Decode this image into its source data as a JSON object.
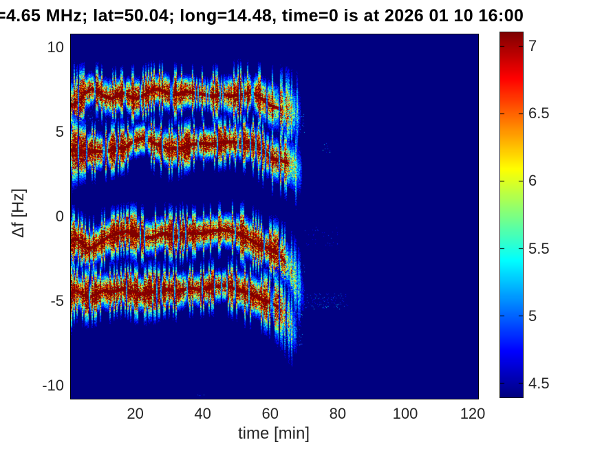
{
  "chart_data": {
    "type": "heatmap",
    "title": "=4.65 MHz;  lat=50.04; long=14.48, time=0 is at 2026 01 10 16:00",
    "xlabel": "time [min]",
    "ylabel": "Δf [Hz]",
    "xlim": [
      0.92,
      121.62
    ],
    "ylim": [
      -10.77,
      10.77
    ],
    "xticks": [
      20,
      40,
      60,
      80,
      100,
      120
    ],
    "yticks": [
      10,
      5,
      0,
      -5,
      -10
    ],
    "grid": false,
    "colormap": "jet",
    "color_axis": [
      4.4,
      7.1
    ],
    "colorbar_ticks": [
      7,
      6.5,
      6,
      5.5,
      5,
      4.5
    ],
    "background_value_color": "#000080",
    "seed": 13,
    "point_format": [
      "t_min",
      "delta_f_hz",
      "amplitude",
      "sigma_hz"
    ],
    "series": [
      {
        "name": "doppler-trace-plus7",
        "points": [
          [
            0.9,
            6.55,
            0.8,
            0.75
          ],
          [
            3,
            6.8,
            0.9,
            0.6
          ],
          [
            5,
            7.3,
            0.95,
            0.5
          ],
          [
            7,
            7.55,
            1,
            0.45
          ],
          [
            9,
            7.45,
            1,
            0.45
          ],
          [
            11,
            7.1,
            1,
            0.5
          ],
          [
            13,
            7.0,
            1,
            0.5
          ],
          [
            14.5,
            7.2,
            1,
            0.45
          ],
          [
            16.5,
            7.3,
            1,
            0.45
          ],
          [
            18.5,
            7.1,
            1,
            0.5
          ],
          [
            20.5,
            7.0,
            1,
            0.55
          ],
          [
            22.5,
            7.2,
            1,
            0.5
          ],
          [
            25,
            7.5,
            1,
            0.45
          ],
          [
            27,
            7.55,
            1,
            0.45
          ],
          [
            29,
            7.4,
            1,
            0.5
          ],
          [
            31,
            7.2,
            1,
            0.5
          ],
          [
            33,
            7.25,
            1,
            0.5
          ],
          [
            35,
            7.4,
            1,
            0.45
          ],
          [
            38,
            7.3,
            1,
            0.45
          ],
          [
            40,
            7.25,
            1,
            0.45
          ],
          [
            43,
            7.15,
            1,
            0.5
          ],
          [
            46,
            7.25,
            1,
            0.5
          ],
          [
            48,
            7.15,
            1,
            0.55
          ],
          [
            51,
            7.2,
            1,
            0.55
          ],
          [
            54,
            7.35,
            1,
            0.5
          ],
          [
            56,
            7.2,
            0.95,
            0.55
          ],
          [
            58,
            6.9,
            0.9,
            0.6
          ],
          [
            60,
            6.6,
            0.8,
            0.65
          ],
          [
            62,
            6.45,
            0.7,
            0.7
          ],
          [
            64,
            6.35,
            0.55,
            0.75
          ],
          [
            66,
            6.2,
            0.4,
            0.8
          ],
          [
            68,
            6.1,
            0.25,
            0.85
          ],
          [
            69.5,
            6.0,
            0.1,
            0.9
          ]
        ]
      },
      {
        "name": "doppler-trace-plus4",
        "points": [
          [
            0.9,
            3.95,
            0.85,
            0.7
          ],
          [
            3,
            3.9,
            0.95,
            0.55
          ],
          [
            5,
            3.85,
            1,
            0.5
          ],
          [
            7,
            3.9,
            1,
            0.5
          ],
          [
            9,
            3.85,
            1,
            0.5
          ],
          [
            11,
            3.9,
            1,
            0.5
          ],
          [
            13,
            3.95,
            1,
            0.5
          ],
          [
            15,
            4.05,
            1,
            0.45
          ],
          [
            17,
            4.1,
            1,
            0.45
          ],
          [
            19,
            4.4,
            1,
            0.45
          ],
          [
            22,
            4.65,
            1,
            0.45
          ],
          [
            24,
            4.55,
            1,
            0.45
          ],
          [
            26,
            4.3,
            1,
            0.5
          ],
          [
            28,
            4.2,
            1,
            0.5
          ],
          [
            30,
            4.0,
            1,
            0.5
          ],
          [
            33,
            4.05,
            1,
            0.5
          ],
          [
            35,
            4.15,
            1,
            0.45
          ],
          [
            37,
            4.3,
            1,
            0.45
          ],
          [
            40,
            4.35,
            1,
            0.45
          ],
          [
            42,
            4.3,
            1,
            0.45
          ],
          [
            44,
            4.35,
            1,
            0.45
          ],
          [
            46,
            4.4,
            1,
            0.45
          ],
          [
            48,
            4.45,
            1,
            0.45
          ],
          [
            50,
            4.4,
            1,
            0.5
          ],
          [
            53,
            4.4,
            1,
            0.5
          ],
          [
            56,
            4.25,
            0.95,
            0.55
          ],
          [
            58,
            3.85,
            0.9,
            0.6
          ],
          [
            60,
            3.55,
            0.85,
            0.6
          ],
          [
            62,
            3.35,
            0.85,
            0.6
          ],
          [
            64,
            3.3,
            0.8,
            0.6
          ],
          [
            66,
            3.1,
            0.5,
            0.7
          ],
          [
            68,
            2.85,
            0.3,
            0.8
          ],
          [
            69.5,
            2.6,
            0.12,
            0.85
          ]
        ]
      },
      {
        "name": "doppler-trace-minus1",
        "points": [
          [
            0.9,
            -1.45,
            0.9,
            0.65
          ],
          [
            2.5,
            -1.3,
            1,
            0.5
          ],
          [
            4,
            -1.55,
            1,
            0.5
          ],
          [
            6,
            -1.9,
            1,
            0.5
          ],
          [
            8,
            -1.75,
            1,
            0.5
          ],
          [
            10,
            -1.45,
            1,
            0.5
          ],
          [
            12,
            -1.2,
            1,
            0.5
          ],
          [
            14,
            -1.05,
            1,
            0.45
          ],
          [
            16,
            -0.9,
            1,
            0.45
          ],
          [
            18,
            -0.85,
            1,
            0.45
          ],
          [
            20,
            -1.0,
            1,
            0.5
          ],
          [
            22,
            -1.15,
            1,
            0.5
          ],
          [
            24,
            -1.25,
            1,
            0.5
          ],
          [
            26,
            -1.15,
            1,
            0.5
          ],
          [
            28,
            -0.95,
            1,
            0.45
          ],
          [
            30,
            -1.05,
            1,
            0.5
          ],
          [
            32,
            -1.15,
            1,
            0.5
          ],
          [
            34,
            -1.05,
            1,
            0.5
          ],
          [
            36,
            -0.95,
            1,
            0.45
          ],
          [
            38,
            -1.0,
            1,
            0.45
          ],
          [
            40,
            -0.95,
            1,
            0.45
          ],
          [
            42,
            -0.85,
            1,
            0.45
          ],
          [
            44,
            -0.8,
            1,
            0.45
          ],
          [
            46,
            -0.78,
            1,
            0.45
          ],
          [
            48,
            -0.82,
            1,
            0.5
          ],
          [
            50,
            -0.95,
            1,
            0.5
          ],
          [
            52,
            -1.1,
            1,
            0.55
          ],
          [
            54,
            -1.35,
            1,
            0.55
          ],
          [
            56,
            -1.6,
            1,
            0.55
          ],
          [
            58,
            -1.75,
            1,
            0.5
          ],
          [
            59.5,
            -1.85,
            1,
            0.5
          ],
          [
            61,
            -2.0,
            0.9,
            0.55
          ],
          [
            63,
            -2.3,
            0.75,
            0.6
          ],
          [
            65,
            -2.8,
            0.55,
            0.7
          ],
          [
            67,
            -3.5,
            0.35,
            0.8
          ],
          [
            69,
            -4.3,
            0.2,
            0.85
          ],
          [
            70,
            -4.7,
            0.08,
            0.9
          ]
        ]
      },
      {
        "name": "doppler-trace-minus4p5",
        "points": [
          [
            0.9,
            -4.55,
            0.9,
            0.65
          ],
          [
            2.5,
            -4.35,
            1,
            0.5
          ],
          [
            4.5,
            -4.6,
            1,
            0.5
          ],
          [
            6.5,
            -4.75,
            1,
            0.5
          ],
          [
            8.5,
            -4.55,
            1,
            0.5
          ],
          [
            10.5,
            -4.35,
            1,
            0.5
          ],
          [
            12.5,
            -4.45,
            1,
            0.5
          ],
          [
            14.5,
            -4.35,
            1,
            0.45
          ],
          [
            16.5,
            -4.25,
            1,
            0.45
          ],
          [
            18.5,
            -4.35,
            1,
            0.5
          ],
          [
            20.5,
            -4.5,
            1,
            0.5
          ],
          [
            22.5,
            -4.55,
            1,
            0.5
          ],
          [
            24.5,
            -4.4,
            1,
            0.5
          ],
          [
            26.5,
            -4.45,
            1,
            0.5
          ],
          [
            28.5,
            -4.35,
            1,
            0.45
          ],
          [
            30.5,
            -4.3,
            1,
            0.45
          ],
          [
            32.5,
            -4.4,
            1,
            0.5
          ],
          [
            34.5,
            -4.3,
            1,
            0.5
          ],
          [
            36.5,
            -4.2,
            1,
            0.45
          ],
          [
            38.5,
            -4.3,
            1,
            0.45
          ],
          [
            40.5,
            -4.25,
            1,
            0.45
          ],
          [
            42.5,
            -4.15,
            1,
            0.45
          ],
          [
            44.5,
            -4.1,
            1,
            0.45
          ],
          [
            46.5,
            -4.05,
            1,
            0.45
          ],
          [
            48.5,
            -4.2,
            1,
            0.5
          ],
          [
            50.5,
            -4.3,
            1,
            0.5
          ],
          [
            52.5,
            -4.45,
            1,
            0.55
          ],
          [
            54.5,
            -4.6,
            1,
            0.55
          ],
          [
            56.5,
            -4.8,
            0.95,
            0.55
          ],
          [
            58.5,
            -4.95,
            0.9,
            0.55
          ],
          [
            60.5,
            -5.1,
            0.8,
            0.6
          ],
          [
            62,
            -5.3,
            0.65,
            0.65
          ],
          [
            63.5,
            -5.6,
            0.5,
            0.7
          ],
          [
            65,
            -6.0,
            0.4,
            0.75
          ],
          [
            66.5,
            -6.5,
            0.3,
            0.8
          ],
          [
            68,
            -7.0,
            0.15,
            0.85
          ]
        ]
      }
    ],
    "scatter_clouds": [
      {
        "t0": 1,
        "t1": 9,
        "f0": 5.4,
        "f1": 6.3,
        "amp": 0.22
      },
      {
        "t0": 1,
        "t1": 10,
        "f0": 3.0,
        "f1": 3.7,
        "amp": 0.18
      },
      {
        "t0": 1,
        "t1": 8,
        "f0": 2.3,
        "f1": 3.0,
        "amp": 0.12
      },
      {
        "t0": 62,
        "t1": 70,
        "f0": 5.0,
        "f1": 6.1,
        "amp": 0.3
      },
      {
        "t0": 60,
        "t1": 68,
        "f0": 2.1,
        "f1": 3.1,
        "amp": 0.28
      },
      {
        "t0": 75.5,
        "t1": 77.5,
        "f0": 3.8,
        "f1": 4.35,
        "amp": 0.3
      },
      {
        "t0": 64,
        "t1": 70,
        "f0": -4.6,
        "f1": -2.6,
        "amp": 0.3
      },
      {
        "t0": 70,
        "t1": 80,
        "f0": -1.7,
        "f1": -0.6,
        "amp": 0.15
      },
      {
        "t0": 64,
        "t1": 69.5,
        "f0": -7.6,
        "f1": -5.6,
        "amp": 0.38
      },
      {
        "t0": 70,
        "t1": 83,
        "f0": -5.45,
        "f1": -4.55,
        "amp": 0.28
      },
      {
        "t0": 38,
        "t1": 40.5,
        "f0": -10.8,
        "f1": -10.5,
        "amp": 0.35
      }
    ]
  }
}
